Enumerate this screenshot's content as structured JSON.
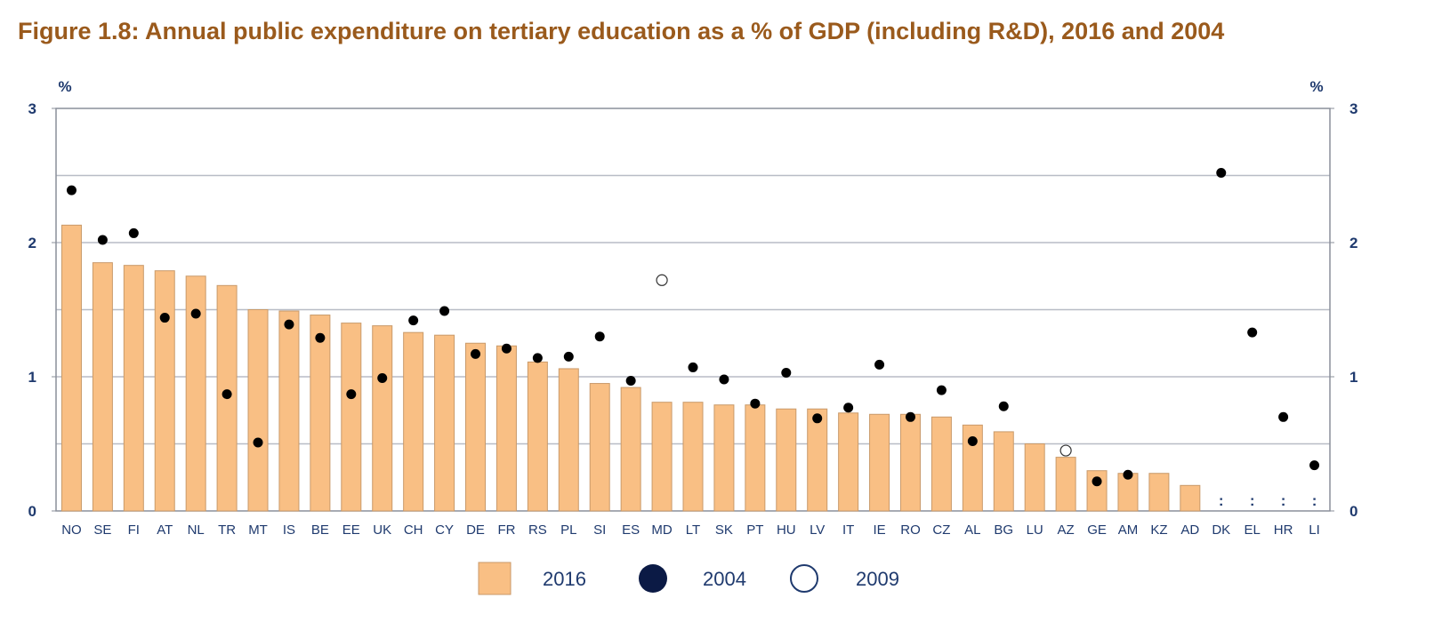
{
  "chart_data": {
    "type": "bar",
    "title": "Figure 1.8: Annual public expenditure on tertiary education as a % of GDP (including R&D), 2016 and 2004",
    "ylabel_left": "%",
    "ylabel_right": "%",
    "ylim": [
      0,
      3
    ],
    "yticks": [
      "0",
      "1",
      "2",
      "3"
    ],
    "grid": true,
    "legend_position": "bottom",
    "categories": [
      "NO",
      "SE",
      "FI",
      "AT",
      "NL",
      "TR",
      "MT",
      "IS",
      "BE",
      "EE",
      "UK",
      "CH",
      "CY",
      "DE",
      "FR",
      "RS",
      "PL",
      "SI",
      "ES",
      "MD",
      "LT",
      "SK",
      "PT",
      "HU",
      "LV",
      "IT",
      "IE",
      "RO",
      "CZ",
      "AL",
      "BG",
      "LU",
      "AZ",
      "GE",
      "AM",
      "KZ",
      "AD",
      "DK",
      "EL",
      "HR",
      "LI"
    ],
    "missing_marker": ":",
    "series": [
      {
        "name": "2016",
        "kind": "bar",
        "color": "#f9bf84",
        "values": [
          2.13,
          1.85,
          1.83,
          1.79,
          1.75,
          1.68,
          1.5,
          1.49,
          1.46,
          1.4,
          1.38,
          1.33,
          1.31,
          1.25,
          1.23,
          1.11,
          1.06,
          0.95,
          0.92,
          0.81,
          0.81,
          0.79,
          0.79,
          0.76,
          0.76,
          0.73,
          0.72,
          0.72,
          0.7,
          0.64,
          0.59,
          0.5,
          0.4,
          0.3,
          0.28,
          0.28,
          0.19,
          null,
          null,
          null,
          null
        ]
      },
      {
        "name": "2004",
        "kind": "dot",
        "color": "#0b1a45",
        "values": [
          2.39,
          2.02,
          2.07,
          1.44,
          1.47,
          0.87,
          0.51,
          1.39,
          1.29,
          0.87,
          0.99,
          1.42,
          1.49,
          1.17,
          1.21,
          1.14,
          1.15,
          1.3,
          0.97,
          null,
          1.07,
          0.98,
          0.8,
          1.03,
          0.69,
          0.77,
          1.09,
          0.7,
          0.9,
          0.52,
          0.78,
          null,
          null,
          0.22,
          0.27,
          null,
          null,
          2.52,
          1.33,
          0.7,
          0.34
        ]
      },
      {
        "name": "2009",
        "kind": "hollow-dot",
        "color": "#ffffff",
        "values": [
          null,
          null,
          null,
          null,
          null,
          null,
          null,
          null,
          null,
          null,
          null,
          null,
          null,
          null,
          null,
          null,
          null,
          null,
          null,
          1.72,
          null,
          null,
          null,
          null,
          null,
          null,
          null,
          null,
          null,
          null,
          null,
          null,
          0.45,
          null,
          null,
          null,
          null,
          null,
          null,
          null,
          null
        ]
      }
    ]
  }
}
